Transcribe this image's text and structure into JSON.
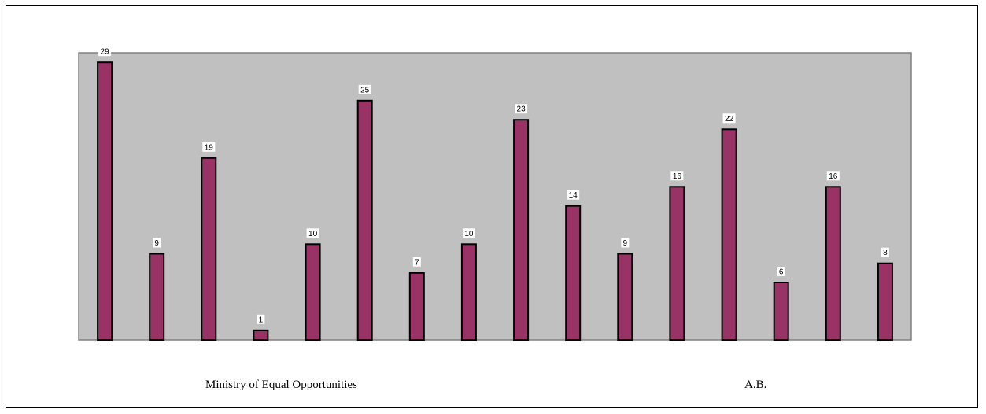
{
  "chart_data": {
    "type": "bar",
    "values": [
      29,
      9,
      19,
      1,
      10,
      25,
      7,
      10,
      23,
      14,
      9,
      16,
      22,
      6,
      16,
      8
    ],
    "group_labels": [
      "Ministry of Equal Opportunities",
      "A.B."
    ],
    "ylim": [
      0,
      30
    ],
    "grid": false,
    "legend": "none"
  },
  "colors": {
    "bar_fill": "#993366",
    "bar_stroke": "#000000",
    "plot_background": "#c0c0c0",
    "plot_border": "#808080"
  }
}
